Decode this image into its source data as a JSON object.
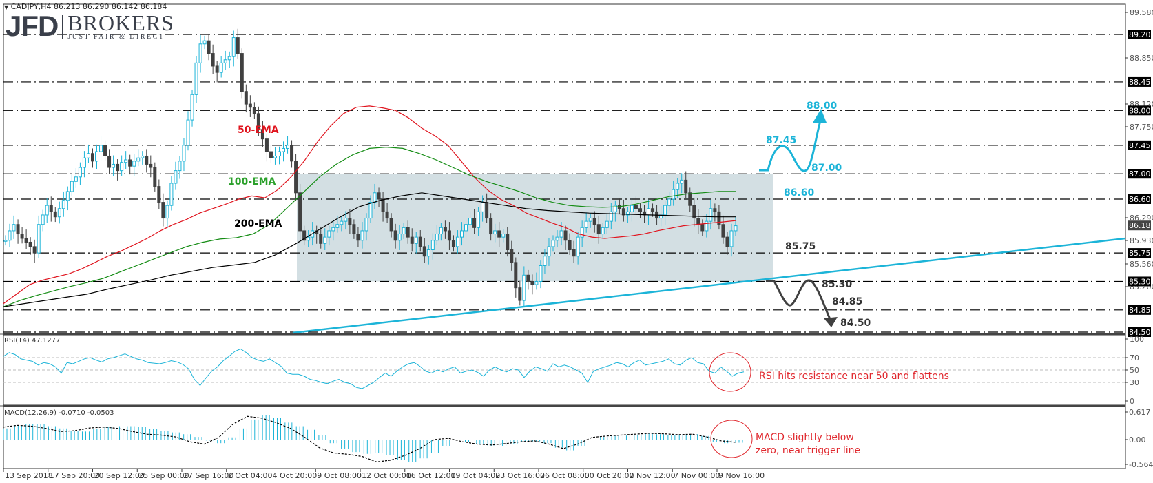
{
  "header": {
    "symbol_line": "CADJPY,H4  86.213 86.290 86.142 86.184"
  },
  "logo": {
    "brand": "JFD",
    "brokers": "BROKERS",
    "tagline": "JUST FAIR & DIRECT"
  },
  "indicators": {
    "rsi_label": "RSI(14) 47.1277",
    "macd_label": "MACD(12,26,9) -0.0710 -0.0503"
  },
  "annotations": {
    "rsi_note": "RSI hits resistance near 50 and flattens",
    "macd_note_line1": "MACD slightly below",
    "macd_note_line2": "zero, near trigger line",
    "ema50": "50-EMA",
    "ema100": "100-EMA",
    "ema200": "200-EMA",
    "bull_levels": [
      "88.00",
      "87.45",
      "87.00",
      "86.60"
    ],
    "bear_levels": [
      "85.75",
      "85.30",
      "84.85",
      "84.50"
    ]
  },
  "colors": {
    "bull_candle": "#1cb4d8",
    "bear_candle": "#404040",
    "ema50": "#e0141e",
    "ema100": "#148c14",
    "ema200": "#000000",
    "trendline": "#1cb4d8",
    "range_box": "#d3dfe3",
    "note_red": "#e0282e",
    "bull_path": "#1cb4d8",
    "bear_path": "#404040"
  },
  "chart_data": {
    "type": "line",
    "title": "CADJPY,H4",
    "ohlc_last": {
      "open": 86.213,
      "high": 86.29,
      "low": 86.142,
      "close": 86.184
    },
    "x_tick_labels": [
      "13 Sep 2018",
      "17 Sep 20:00",
      "20 Sep 12:00",
      "25 Sep 00:00",
      "27 Sep 16:00",
      "2 Oct 04:00",
      "4 Oct 20:00",
      "9 Oct 08:00",
      "12 Oct 00:00",
      "16 Oct 12:00",
      "19 Oct 04:00",
      "23 Oct 16:00",
      "26 Oct 08:00",
      "30 Oct 20:00",
      "2 Nov 12:00",
      "7 Nov 00:00",
      "9 Nov 16:00"
    ],
    "y_axis_labels": [
      "89.580",
      "88.850",
      "88.120",
      "87.750",
      "87.390",
      "86.660",
      "86.290",
      "85.930",
      "85.560",
      "85.200"
    ],
    "ylim": [
      84.47,
      89.8
    ],
    "horizontal_levels": [
      89.2,
      88.45,
      88.0,
      87.45,
      87.0,
      86.6,
      85.75,
      85.3,
      84.85,
      84.5
    ],
    "current_price": 86.184,
    "range_box": {
      "top": 87.0,
      "bottom": 85.3,
      "x_start_idx": 66,
      "x_end_idx": 172
    },
    "trendline": {
      "from": [
        0,
        84.42
      ],
      "to": [
        262,
        85.93
      ]
    },
    "series": [
      {
        "name": "Close (approx.)",
        "values": [
          85.95,
          86.1,
          86.2,
          86.05,
          85.98,
          85.92,
          85.85,
          85.75,
          86.2,
          86.35,
          86.5,
          86.4,
          86.32,
          86.45,
          86.58,
          86.72,
          86.88,
          86.95,
          87.1,
          87.25,
          87.32,
          87.2,
          87.35,
          87.45,
          87.28,
          87.1,
          87.15,
          87.05,
          87.18,
          87.22,
          87.12,
          87.2,
          87.25,
          87.28,
          87.15,
          87.1,
          86.8,
          86.55,
          86.3,
          86.5,
          86.85,
          87.05,
          87.2,
          87.45,
          87.85,
          88.25,
          88.75,
          89.05,
          89.1,
          88.9,
          88.7,
          88.6,
          88.75,
          88.8,
          88.85,
          89.15,
          88.9,
          88.3,
          88.1,
          88.05,
          87.95,
          87.7,
          87.55,
          87.35,
          87.25,
          87.28,
          87.35,
          87.4,
          87.45,
          87.2,
          86.7,
          86.1,
          85.95,
          86.0,
          86.1,
          86.05,
          85.9,
          86.0,
          86.1,
          86.15,
          86.2,
          86.25,
          86.3,
          86.2,
          86.05,
          85.95,
          86.1,
          86.3,
          86.55,
          86.7,
          86.6,
          86.4,
          86.3,
          86.1,
          85.95,
          86.05,
          86.15,
          86.0,
          85.9,
          86.0,
          85.85,
          85.7,
          85.8,
          85.95,
          86.05,
          86.15,
          86.1,
          85.95,
          85.85,
          86.0,
          86.1,
          86.2,
          86.3,
          86.15,
          86.4,
          86.55,
          86.3,
          86.05,
          86.1,
          86.0,
          86.05,
          85.8,
          85.6,
          85.2,
          85.0,
          85.4,
          85.3,
          85.25,
          85.3,
          85.55,
          85.7,
          85.85,
          85.95,
          86.0,
          86.1,
          85.95,
          85.8,
          85.7,
          86.0,
          86.15,
          86.25,
          86.3,
          86.2,
          86.05,
          86.15,
          86.25,
          86.4,
          86.5,
          86.45,
          86.35,
          86.4,
          86.5,
          86.45,
          86.4,
          86.35,
          86.45,
          86.4,
          86.3,
          86.35,
          86.5,
          86.6,
          86.75,
          86.85,
          86.9,
          86.7,
          86.5,
          86.3,
          86.2,
          86.1,
          86.25,
          86.45,
          86.4,
          86.2,
          86.0,
          85.85,
          86.1,
          86.18
        ]
      },
      {
        "name": "50-EMA (approx.)",
        "values": [
          84.95,
          85.1,
          85.25,
          85.32,
          85.37,
          85.42,
          85.5,
          85.6,
          85.7,
          85.78,
          85.88,
          85.98,
          86.1,
          86.2,
          86.28,
          86.38,
          86.45,
          86.52,
          86.6,
          86.65,
          86.62,
          86.75,
          86.95,
          87.2,
          87.5,
          87.75,
          87.95,
          88.05,
          88.07,
          88.04,
          88.0,
          87.88,
          87.72,
          87.6,
          87.45,
          87.2,
          86.95,
          86.75,
          86.6,
          86.5,
          86.38,
          86.3,
          86.22,
          86.15,
          86.05,
          86.0,
          85.98,
          86.0,
          86.02,
          86.05,
          86.1,
          86.14,
          86.18,
          86.2,
          86.22,
          86.24,
          86.26
        ]
      },
      {
        "name": "100-EMA (approx.)",
        "values": [
          84.9,
          85.0,
          85.08,
          85.15,
          85.22,
          85.28,
          85.35,
          85.45,
          85.55,
          85.65,
          85.75,
          85.85,
          85.92,
          85.97,
          85.99,
          86.05,
          86.2,
          86.45,
          86.7,
          86.95,
          87.15,
          87.3,
          87.4,
          87.42,
          87.4,
          87.32,
          87.22,
          87.1,
          86.98,
          86.88,
          86.8,
          86.72,
          86.62,
          86.55,
          86.5,
          86.48,
          86.47,
          86.48,
          86.52,
          86.58,
          86.64,
          86.68,
          86.7,
          86.72,
          86.72
        ]
      },
      {
        "name": "200-EMA (approx.)",
        "values": [
          84.9,
          84.95,
          85.0,
          85.05,
          85.1,
          85.18,
          85.25,
          85.32,
          85.4,
          85.46,
          85.52,
          85.56,
          85.6,
          85.72,
          85.9,
          86.1,
          86.3,
          86.48,
          86.58,
          86.65,
          86.7,
          86.65,
          86.6,
          86.55,
          86.5,
          86.45,
          86.42,
          86.4,
          86.38,
          86.37,
          86.36,
          86.35,
          86.34,
          86.33,
          86.32,
          86.32
        ]
      }
    ],
    "rsi": {
      "label": "RSI(14)",
      "value": 47.1277,
      "ylim": [
        0,
        100
      ],
      "levels": [
        70,
        50,
        30
      ],
      "values": [
        72,
        78,
        75,
        68,
        66,
        64,
        58,
        62,
        60,
        55,
        45,
        62,
        60,
        64,
        68,
        70,
        66,
        63,
        68,
        70,
        73,
        76,
        72,
        68,
        66,
        62,
        61,
        60,
        62,
        65,
        63,
        59,
        52,
        35,
        25,
        37,
        48,
        55,
        65,
        72,
        80,
        84,
        78,
        70,
        66,
        64,
        68,
        62,
        56,
        45,
        43,
        43,
        40,
        35,
        33,
        30,
        28,
        32,
        35,
        30,
        28,
        22,
        20,
        25,
        30,
        38,
        45,
        40,
        48,
        55,
        60,
        62,
        56,
        48,
        45,
        50,
        47,
        52,
        55,
        45,
        48,
        50,
        46,
        40,
        50,
        55,
        50,
        47,
        52,
        50,
        38,
        48,
        55,
        52,
        48,
        60,
        55,
        58,
        55,
        50,
        45,
        30,
        48,
        52,
        55,
        58,
        62,
        60,
        55,
        62,
        66,
        58,
        60,
        62,
        64,
        68,
        60,
        58,
        66,
        70,
        62,
        60,
        48,
        45,
        55,
        48,
        40,
        45,
        47
      ]
    },
    "macd": {
      "label": "MACD(12,26,9)",
      "main": -0.071,
      "signal": -0.0503,
      "ylim": [
        -0.5643,
        0.617
      ],
      "histogram": [
        0.25,
        0.32,
        0.35,
        0.34,
        0.3,
        0.25,
        0.2,
        0.18,
        0.24,
        0.28,
        0.3,
        0.3,
        0.28,
        0.24,
        0.2,
        0.16,
        0.12,
        0.06,
        -0.02,
        -0.08,
        0.05,
        0.25,
        0.45,
        0.55,
        0.48,
        0.38,
        0.3,
        0.22,
        0.1,
        -0.08,
        -0.2,
        -0.28,
        -0.32,
        -0.3,
        -0.35,
        -0.45,
        -0.5,
        -0.42,
        -0.3,
        -0.15,
        0.0,
        -0.05,
        -0.1,
        -0.15,
        -0.14,
        -0.1,
        -0.06,
        -0.04,
        -0.08,
        -0.18,
        -0.24,
        -0.15,
        0.0,
        0.06,
        0.08,
        0.09,
        0.11,
        0.13,
        0.12,
        0.1,
        0.11,
        0.12,
        0.08,
        -0.05,
        -0.08,
        -0.07
      ],
      "signal_line": [
        0.28,
        0.32,
        0.3,
        0.25,
        0.18,
        0.2,
        0.26,
        0.28,
        0.25,
        0.18,
        0.12,
        0.1,
        0.06,
        -0.05,
        -0.1,
        0.05,
        0.35,
        0.52,
        0.48,
        0.38,
        0.25,
        0.05,
        -0.18,
        -0.3,
        -0.33,
        -0.38,
        -0.5,
        -0.46,
        -0.35,
        -0.2,
        0.0,
        0.03,
        -0.05,
        -0.1,
        -0.12,
        -0.09,
        -0.05,
        -0.03,
        -0.1,
        -0.2,
        -0.1,
        0.05,
        0.08,
        0.1,
        0.12,
        0.14,
        0.13,
        0.11,
        0.12,
        0.06,
        -0.03,
        -0.06
      ]
    }
  }
}
